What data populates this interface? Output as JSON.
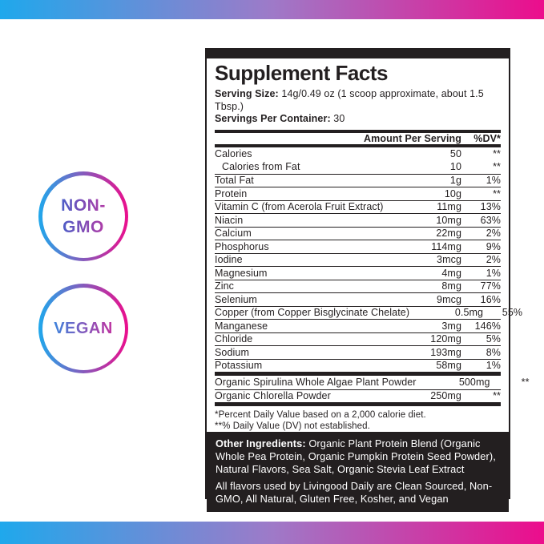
{
  "badges": [
    {
      "id": "non-gmo",
      "lines": [
        "NON-",
        "GMO"
      ]
    },
    {
      "id": "vegan",
      "lines": [
        "VEGAN"
      ]
    }
  ],
  "label": {
    "title": "Supplement Facts",
    "serving_size_label": "Serving Size:",
    "serving_size_value": "14g/0.49 oz (1 scoop approximate, about 1.5 Tbsp.)",
    "servings_label": "Servings Per Container:",
    "servings_value": "30",
    "columns": {
      "amount": "Amount Per Serving",
      "dv": "%DV*"
    },
    "rows": [
      {
        "name": "Calories",
        "amount": "50",
        "dv": "**",
        "sep": false,
        "indent": false
      },
      {
        "name": "Calories from Fat",
        "amount": "10",
        "dv": "**",
        "sep": false,
        "indent": true
      },
      {
        "name": "Total Fat",
        "amount": "1g",
        "dv": "1%",
        "sep": true,
        "indent": false
      },
      {
        "name": "Protein",
        "amount": "10g",
        "dv": "**",
        "sep": true,
        "indent": false
      },
      {
        "name": "Vitamin C (from Acerola Fruit Extract)",
        "amount": "11mg",
        "dv": "13%",
        "sep": true,
        "indent": false
      },
      {
        "name": "Niacin",
        "amount": "10mg",
        "dv": "63%",
        "sep": true,
        "indent": false
      },
      {
        "name": "Calcium",
        "amount": "22mg",
        "dv": "2%",
        "sep": true,
        "indent": false
      },
      {
        "name": "Phosphorus",
        "amount": "114mg",
        "dv": "9%",
        "sep": true,
        "indent": false
      },
      {
        "name": "Iodine",
        "amount": "3mcg",
        "dv": "2%",
        "sep": true,
        "indent": false
      },
      {
        "name": "Magnesium",
        "amount": "4mg",
        "dv": "1%",
        "sep": true,
        "indent": false
      },
      {
        "name": "Zinc",
        "amount": "8mg",
        "dv": "77%",
        "sep": true,
        "indent": false
      },
      {
        "name": "Selenium",
        "amount": "9mcg",
        "dv": "16%",
        "sep": true,
        "indent": false
      },
      {
        "name": "Copper (from Copper Bisglycinate Chelate)",
        "amount": "0.5mg",
        "dv": "55%",
        "sep": true,
        "indent": false
      },
      {
        "name": "Manganese",
        "amount": "3mg",
        "dv": "146%",
        "sep": true,
        "indent": false
      },
      {
        "name": "Chloride",
        "amount": "120mg",
        "dv": "5%",
        "sep": true,
        "indent": false
      },
      {
        "name": "Sodium",
        "amount": "193mg",
        "dv": "8%",
        "sep": true,
        "indent": false
      },
      {
        "name": "Potassium",
        "amount": "58mg",
        "dv": "1%",
        "sep": true,
        "indent": false
      }
    ],
    "organic_rows": [
      {
        "name": "Organic Spirulina Whole Algae Plant Powder",
        "amount": "500mg",
        "dv": "**",
        "sep": false,
        "indent": false
      },
      {
        "name": "Organic Chlorella Powder",
        "amount": "250mg",
        "dv": "**",
        "sep": true,
        "indent": false
      }
    ],
    "footnotes": [
      "*Percent Daily Value based on a 2,000 calorie diet.",
      "**% Daily Value (DV) not established."
    ],
    "footer": {
      "other_ingredients_label": "Other Ingredients:",
      "other_ingredients_text": "Organic Plant Protein Blend (Organic Whole Pea Protein, Organic Pumpkin Protein Seed Powder), Natural Flavors, Sea Salt, Organic Stevia Leaf Extract",
      "flavors_text": "All flavors used by Livingood Daily are Clean Sourced, Non-GMO, All Natural, Gluten Free, Kosher, and Vegan"
    }
  },
  "colors": {
    "gradient_start": "#1FA8EC",
    "gradient_mid": "#9E7AC8",
    "gradient_end": "#EC0D8C",
    "label_black": "#231F20",
    "nongmo_text_start": "#4B5FC8",
    "nongmo_text_end": "#B23AA6",
    "vegan_text_start": "#3E84DC",
    "vegan_text_end": "#C032A0"
  }
}
